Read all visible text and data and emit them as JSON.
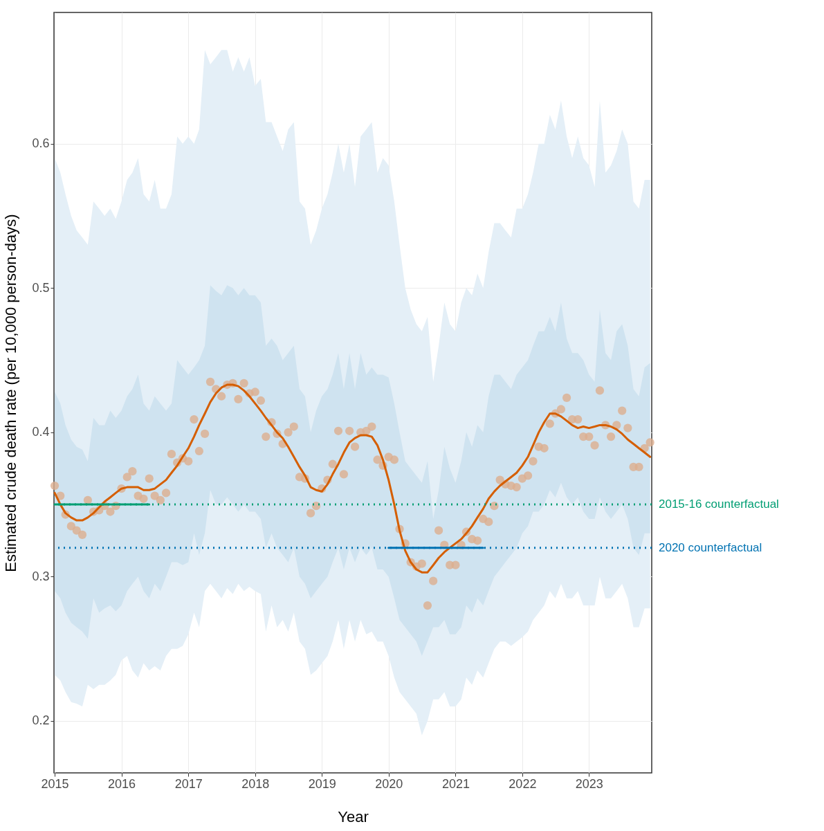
{
  "chart_data": {
    "type": "line",
    "xlabel": "Year",
    "ylabel": "Estimated crude death rate (per 10,000 person-days)",
    "x": [
      "2015-01",
      "2015-02",
      "2015-03",
      "2015-04",
      "2015-05",
      "2015-06",
      "2015-07",
      "2015-08",
      "2015-09",
      "2015-10",
      "2015-11",
      "2015-12",
      "2016-01",
      "2016-02",
      "2016-03",
      "2016-04",
      "2016-05",
      "2016-06",
      "2016-07",
      "2016-08",
      "2016-09",
      "2016-10",
      "2016-11",
      "2016-12",
      "2017-01",
      "2017-02",
      "2017-03",
      "2017-04",
      "2017-05",
      "2017-06",
      "2017-07",
      "2017-08",
      "2017-09",
      "2017-10",
      "2017-11",
      "2017-12",
      "2018-01",
      "2018-02",
      "2018-03",
      "2018-04",
      "2018-05",
      "2018-06",
      "2018-07",
      "2018-08",
      "2018-09",
      "2018-10",
      "2018-11",
      "2018-12",
      "2019-01",
      "2019-02",
      "2019-03",
      "2019-04",
      "2019-05",
      "2019-06",
      "2019-07",
      "2019-08",
      "2019-09",
      "2019-10",
      "2019-11",
      "2019-12",
      "2020-01",
      "2020-02",
      "2020-03",
      "2020-04",
      "2020-05",
      "2020-06",
      "2020-07",
      "2020-08",
      "2020-09",
      "2020-10",
      "2020-11",
      "2020-12",
      "2021-01",
      "2021-02",
      "2021-03",
      "2021-04",
      "2021-05",
      "2021-06",
      "2021-07",
      "2021-08",
      "2021-09",
      "2021-10",
      "2021-11",
      "2021-12",
      "2022-01",
      "2022-02",
      "2022-03",
      "2022-04",
      "2022-05",
      "2022-06",
      "2022-07",
      "2022-08",
      "2022-09",
      "2022-10",
      "2022-11",
      "2022-12",
      "2023-01",
      "2023-02",
      "2023-03",
      "2023-04",
      "2023-05",
      "2023-06",
      "2023-07",
      "2023-08",
      "2023-09",
      "2023-10",
      "2023-11",
      "2023-12"
    ],
    "series": [
      {
        "type": "scatter",
        "color": "#dcae8e",
        "marker": "circle",
        "values": [
          0.363,
          0.356,
          0.343,
          0.335,
          0.332,
          0.329,
          0.353,
          0.345,
          0.346,
          0.349,
          0.345,
          0.349,
          0.361,
          0.369,
          0.373,
          0.356,
          0.354,
          0.368,
          0.356,
          0.353,
          0.358,
          0.385,
          0.379,
          0.382,
          0.38,
          0.409,
          0.387,
          0.399,
          0.435,
          0.43,
          0.425,
          0.433,
          0.434,
          0.423,
          0.434,
          0.427,
          0.428,
          0.422,
          0.397,
          0.407,
          0.399,
          0.392,
          0.4,
          0.404,
          0.369,
          0.368,
          0.344,
          0.349,
          0.361,
          0.367,
          0.378,
          0.401,
          0.371,
          0.401,
          0.39,
          0.4,
          0.401,
          0.404,
          0.381,
          0.377,
          0.383,
          0.381,
          0.333,
          0.323,
          0.31,
          0.307,
          0.309,
          0.28,
          0.297,
          0.332,
          0.322,
          0.308,
          0.308,
          0.322,
          0.331,
          0.326,
          0.325,
          0.34,
          0.338,
          0.349,
          0.367,
          0.364,
          0.363,
          0.362,
          0.368,
          0.37,
          0.38,
          0.39,
          0.389,
          0.406,
          0.413,
          0.416,
          0.424,
          0.409,
          0.409,
          0.397,
          0.397,
          0.391,
          0.429,
          0.405,
          0.397,
          0.405,
          0.415,
          0.403,
          0.376,
          0.376,
          0.389,
          0.393
        ],
        "lower": [
          0.232,
          0.228,
          0.22,
          0.213,
          0.212,
          0.21,
          0.225,
          0.222,
          0.225,
          0.225,
          0.228,
          0.232,
          0.242,
          0.245,
          0.235,
          0.23,
          0.24,
          0.235,
          0.238,
          0.235,
          0.245,
          0.25,
          0.25,
          0.252,
          0.26,
          0.275,
          0.265,
          0.29,
          0.295,
          0.29,
          0.285,
          0.292,
          0.288,
          0.295,
          0.29,
          0.293,
          0.29,
          0.288,
          0.262,
          0.28,
          0.265,
          0.27,
          0.262,
          0.275,
          0.255,
          0.25,
          0.232,
          0.235,
          0.24,
          0.245,
          0.255,
          0.27,
          0.25,
          0.27,
          0.255,
          0.27,
          0.26,
          0.262,
          0.255,
          0.255,
          0.245,
          0.23,
          0.22,
          0.215,
          0.21,
          0.205,
          0.19,
          0.2,
          0.215,
          0.215,
          0.22,
          0.21,
          0.21,
          0.215,
          0.23,
          0.225,
          0.235,
          0.23,
          0.24,
          0.25,
          0.255,
          0.255,
          0.252,
          0.255,
          0.258,
          0.262,
          0.27,
          0.275,
          0.28,
          0.29,
          0.285,
          0.295,
          0.285,
          0.285,
          0.29,
          0.28,
          0.28,
          0.28,
          0.3,
          0.285,
          0.285,
          0.29,
          0.295,
          0.285,
          0.265,
          0.265,
          0.278,
          0.278
        ],
        "upper": [
          0.59,
          0.58,
          0.565,
          0.55,
          0.54,
          0.535,
          0.53,
          0.56,
          0.555,
          0.55,
          0.555,
          0.548,
          0.56,
          0.575,
          0.58,
          0.59,
          0.565,
          0.56,
          0.575,
          0.555,
          0.555,
          0.565,
          0.605,
          0.6,
          0.605,
          0.6,
          0.61,
          0.665,
          0.655,
          0.66,
          0.665,
          0.665,
          0.65,
          0.66,
          0.65,
          0.66,
          0.64,
          0.645,
          0.615,
          0.615,
          0.605,
          0.595,
          0.61,
          0.615,
          0.56,
          0.555,
          0.53,
          0.54,
          0.555,
          0.565,
          0.58,
          0.6,
          0.58,
          0.6,
          0.57,
          0.605,
          0.61,
          0.615,
          0.58,
          0.59,
          0.585,
          0.56,
          0.53,
          0.5,
          0.485,
          0.475,
          0.47,
          0.48,
          0.435,
          0.46,
          0.49,
          0.475,
          0.47,
          0.49,
          0.5,
          0.495,
          0.51,
          0.5,
          0.525,
          0.545,
          0.545,
          0.54,
          0.535,
          0.555,
          0.555,
          0.565,
          0.58,
          0.6,
          0.6,
          0.62,
          0.61,
          0.63,
          0.605,
          0.59,
          0.605,
          0.59,
          0.585,
          0.57,
          0.63,
          0.58,
          0.585,
          0.595,
          0.61,
          0.6,
          0.56,
          0.555,
          0.575,
          0.575
        ]
      },
      {
        "color": "#d55e00",
        "values": [
          0.358,
          0.35,
          0.344,
          0.341,
          0.339,
          0.339,
          0.341,
          0.344,
          0.348,
          0.352,
          0.355,
          0.358,
          0.361,
          0.362,
          0.362,
          0.362,
          0.36,
          0.36,
          0.361,
          0.364,
          0.367,
          0.372,
          0.377,
          0.383,
          0.389,
          0.397,
          0.405,
          0.413,
          0.421,
          0.427,
          0.431,
          0.433,
          0.433,
          0.432,
          0.429,
          0.425,
          0.42,
          0.415,
          0.41,
          0.405,
          0.4,
          0.396,
          0.39,
          0.383,
          0.376,
          0.37,
          0.362,
          0.36,
          0.359,
          0.364,
          0.371,
          0.378,
          0.386,
          0.393,
          0.396,
          0.398,
          0.398,
          0.397,
          0.391,
          0.381,
          0.367,
          0.35,
          0.332,
          0.318,
          0.31,
          0.305,
          0.303,
          0.303,
          0.308,
          0.313,
          0.317,
          0.32,
          0.323,
          0.326,
          0.33,
          0.335,
          0.341,
          0.347,
          0.354,
          0.359,
          0.363,
          0.366,
          0.369,
          0.372,
          0.377,
          0.383,
          0.391,
          0.4,
          0.407,
          0.413,
          0.413,
          0.411,
          0.408,
          0.405,
          0.403,
          0.404,
          0.403,
          0.404,
          0.405,
          0.405,
          0.404,
          0.402,
          0.399,
          0.395,
          0.392,
          0.389,
          0.386,
          0.383
        ],
        "lower": [
          0.29,
          0.285,
          0.275,
          0.268,
          0.265,
          0.262,
          0.257,
          0.285,
          0.275,
          0.278,
          0.28,
          0.276,
          0.28,
          0.29,
          0.295,
          0.3,
          0.29,
          0.285,
          0.295,
          0.29,
          0.3,
          0.31,
          0.31,
          0.308,
          0.31,
          0.33,
          0.315,
          0.33,
          0.36,
          0.35,
          0.35,
          0.355,
          0.35,
          0.345,
          0.35,
          0.345,
          0.345,
          0.34,
          0.32,
          0.33,
          0.32,
          0.315,
          0.31,
          0.32,
          0.3,
          0.295,
          0.285,
          0.29,
          0.295,
          0.3,
          0.31,
          0.32,
          0.305,
          0.32,
          0.31,
          0.32,
          0.315,
          0.32,
          0.305,
          0.305,
          0.3,
          0.285,
          0.27,
          0.265,
          0.26,
          0.255,
          0.245,
          0.255,
          0.265,
          0.265,
          0.27,
          0.26,
          0.26,
          0.265,
          0.28,
          0.275,
          0.285,
          0.28,
          0.29,
          0.3,
          0.305,
          0.31,
          0.315,
          0.32,
          0.33,
          0.335,
          0.345,
          0.345,
          0.35,
          0.36,
          0.355,
          0.365,
          0.355,
          0.35,
          0.355,
          0.345,
          0.34,
          0.34,
          0.355,
          0.345,
          0.34,
          0.345,
          0.35,
          0.34,
          0.32,
          0.315,
          0.33,
          0.33
        ],
        "upper": [
          0.428,
          0.42,
          0.405,
          0.395,
          0.39,
          0.388,
          0.38,
          0.41,
          0.405,
          0.405,
          0.415,
          0.41,
          0.415,
          0.425,
          0.43,
          0.44,
          0.42,
          0.415,
          0.425,
          0.42,
          0.415,
          0.42,
          0.45,
          0.445,
          0.44,
          0.445,
          0.45,
          0.46,
          0.502,
          0.498,
          0.495,
          0.502,
          0.5,
          0.495,
          0.5,
          0.495,
          0.495,
          0.49,
          0.46,
          0.465,
          0.46,
          0.45,
          0.455,
          0.46,
          0.43,
          0.425,
          0.4,
          0.415,
          0.425,
          0.43,
          0.44,
          0.455,
          0.43,
          0.455,
          0.43,
          0.455,
          0.44,
          0.445,
          0.44,
          0.44,
          0.438,
          0.42,
          0.4,
          0.38,
          0.375,
          0.37,
          0.365,
          0.38,
          0.34,
          0.36,
          0.39,
          0.375,
          0.365,
          0.38,
          0.4,
          0.39,
          0.405,
          0.4,
          0.425,
          0.44,
          0.44,
          0.435,
          0.43,
          0.44,
          0.445,
          0.45,
          0.46,
          0.47,
          0.47,
          0.48,
          0.47,
          0.49,
          0.465,
          0.455,
          0.455,
          0.45,
          0.44,
          0.435,
          0.485,
          0.455,
          0.45,
          0.47,
          0.475,
          0.46,
          0.43,
          0.425,
          0.445,
          0.448
        ]
      },
      {
        "type": "line",
        "color": "#009e73",
        "x": [
          "2015-01",
          "2016-06"
        ],
        "values": [
          0.35,
          0.35
        ]
      },
      {
        "type": "line",
        "color": "#0072b2",
        "x": [
          "2020-01",
          "2021-06"
        ],
        "values": [
          0.32,
          0.32
        ]
      }
    ],
    "ref_lines": [
      {
        "axis": "y",
        "value": 0.35,
        "label": "2015-16 counterfactual",
        "color": "#009e73",
        "line_style": "dotted"
      },
      {
        "axis": "y",
        "value": 0.32,
        "label": "2020 counterfactual",
        "color": "#0072b2",
        "line_style": "dotted"
      }
    ],
    "xlim": [
      "2014-12-28",
      "2023-12-10"
    ],
    "xticks": [
      "2015",
      "2016",
      "2017",
      "2018",
      "2019",
      "2020",
      "2021",
      "2022",
      "2023"
    ],
    "ylim": [
      0.164,
      0.691
    ],
    "yticks": [
      0.2,
      0.3,
      0.4,
      0.5,
      0.6
    ],
    "grid": true
  }
}
